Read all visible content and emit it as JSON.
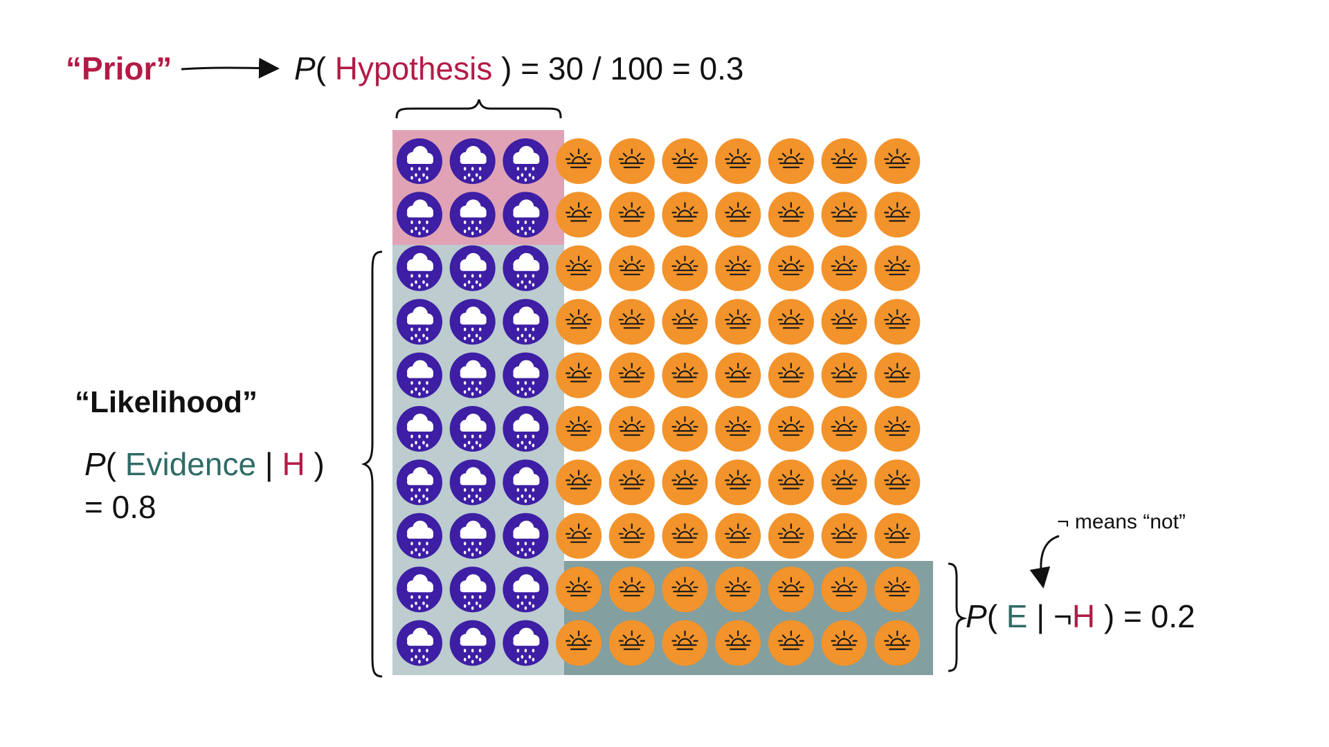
{
  "colors": {
    "hypothesis": "#b31b46",
    "evidence": "#2f6b66",
    "prior_region": "#dfa3b5",
    "likelihood_region": "#bccccf",
    "not_h_region": "#839fa0",
    "rain_circle": "#3d1ea4",
    "sun_circle": "#f2932b",
    "icon_white": "#ffffff",
    "icon_dark": "#1a1a1a"
  },
  "icons": {
    "rain": "rain-cloud-icon",
    "sun": "sunrise-icon"
  },
  "grid": {
    "rows": 10,
    "cols": 10,
    "rain_cols": 3,
    "prior_rows": 2,
    "not_h_rows": 2
  },
  "labels": {
    "prior": "“Prior”",
    "prior_eq": {
      "p": "P",
      "open": "( ",
      "hypothesis": "Hypothesis",
      "rest": " ) = 30 / 100 = 0.3"
    },
    "likelihood": "“Likelihood”",
    "likelihood_eq": {
      "p": "P",
      "open": "( ",
      "evidence": "Evidence",
      "bar": " | ",
      "h": "H",
      "close": " )",
      "result": "= 0.8"
    },
    "not_h_eq": {
      "p": "P",
      "open": "( ",
      "e": "E",
      "bar": " | ¬",
      "h": "H",
      "rest": " ) = 0.2"
    },
    "means_not": "¬ means “not”"
  }
}
